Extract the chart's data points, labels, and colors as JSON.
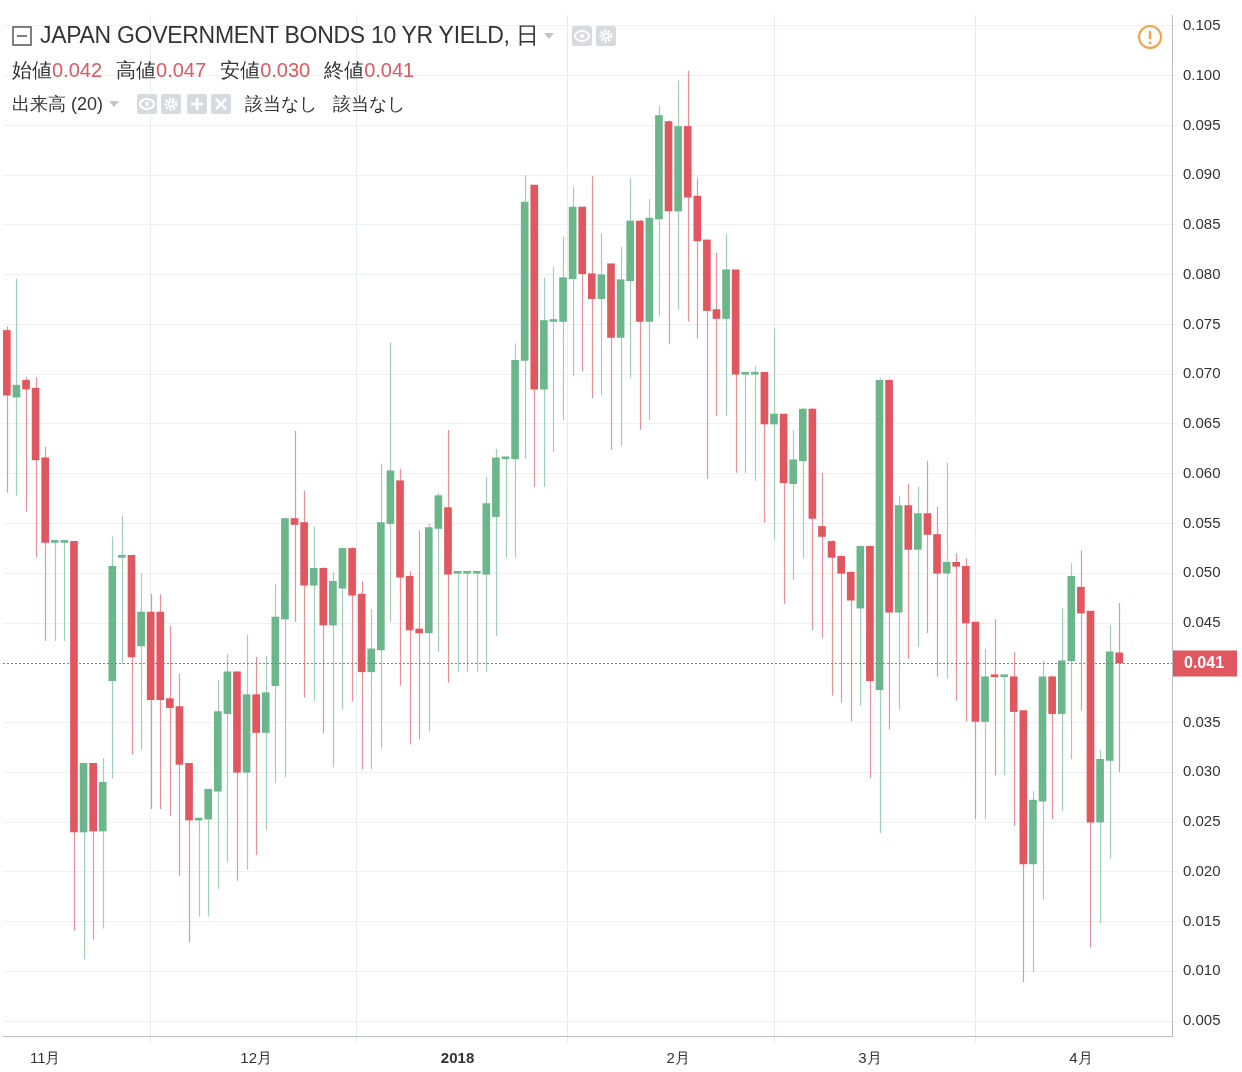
{
  "chart_data": {
    "type": "candlestick",
    "title": "JAPAN GOVERNMENT BONDS 10 YR YIELD, 日",
    "subtitle": "始値0.042 高値0.047 安値0.030 終値0.041",
    "annotations": [
      "出来高 (20)",
      "該当なし",
      "該当なし"
    ],
    "categories": [
      null,
      null,
      null,
      null,
      "11月",
      null,
      null,
      null,
      null,
      null,
      null,
      null,
      null,
      null,
      null,
      null,
      null,
      null,
      null,
      null,
      null,
      null,
      null,
      null,
      null,
      null,
      "12月",
      null,
      null,
      null,
      null,
      null,
      null,
      null,
      null,
      null,
      null,
      null,
      null,
      null,
      null,
      null,
      null,
      null,
      null,
      null,
      null,
      "2018",
      null,
      null,
      null,
      null,
      null,
      null,
      null,
      null,
      null,
      null,
      null,
      null,
      null,
      null,
      null,
      null,
      null,
      null,
      null,
      null,
      null,
      null,
      "2月",
      null,
      null,
      null,
      null,
      null,
      null,
      null,
      null,
      null,
      null,
      null,
      null,
      null,
      null,
      null,
      null,
      null,
      null,
      null,
      "3月",
      null,
      null,
      null,
      null,
      null,
      null,
      null,
      null,
      null,
      null,
      null,
      null,
      null,
      null,
      null,
      null,
      null,
      null,
      null,
      null,
      null,
      "4月",
      null,
      null,
      null,
      null
    ],
    "ohlc": [
      [
        0.0744,
        0.0748,
        0.0581,
        0.0679
      ],
      [
        0.0677,
        0.0796,
        0.0578,
        0.0689
      ],
      [
        0.0694,
        0.0697,
        0.0562,
        0.0685
      ],
      [
        0.0686,
        0.0697,
        0.0516,
        0.0614
      ],
      [
        0.0616,
        0.0627,
        0.0432,
        0.0531
      ],
      [
        0.0531,
        0.0532,
        0.0432,
        0.0531
      ],
      [
        0.0531,
        0.0532,
        0.0432,
        0.0531
      ],
      [
        0.0532,
        0.0532,
        0.0141,
        0.024
      ],
      [
        0.024,
        0.0309,
        0.0112,
        0.0309
      ],
      [
        0.0309,
        0.0309,
        0.0132,
        0.0241
      ],
      [
        0.0241,
        0.0314,
        0.0143,
        0.029
      ],
      [
        0.0392,
        0.0537,
        0.0294,
        0.0507
      ],
      [
        0.0516,
        0.0558,
        0.0409,
        0.0518
      ],
      [
        0.0518,
        0.0518,
        0.0318,
        0.0416
      ],
      [
        0.0427,
        0.05,
        0.0323,
        0.0461
      ],
      [
        0.0461,
        0.0479,
        0.0263,
        0.0373
      ],
      [
        0.0461,
        0.0479,
        0.0263,
        0.0373
      ],
      [
        0.0374,
        0.0447,
        0.0256,
        0.0365
      ],
      [
        0.0366,
        0.0399,
        0.0196,
        0.0308
      ],
      [
        0.0309,
        0.0309,
        0.0129,
        0.0252
      ],
      [
        0.0252,
        0.0254,
        0.0155,
        0.0253
      ],
      [
        0.0253,
        0.0283,
        0.0155,
        0.0283
      ],
      [
        0.0281,
        0.0393,
        0.0183,
        0.0361
      ],
      [
        0.0359,
        0.0419,
        0.021,
        0.0401
      ],
      [
        0.0401,
        0.0401,
        0.0191,
        0.03
      ],
      [
        0.03,
        0.0438,
        0.0202,
        0.0378
      ],
      [
        0.0378,
        0.0416,
        0.0217,
        0.034
      ],
      [
        0.034,
        0.0417,
        0.0242,
        0.038
      ],
      [
        0.0387,
        0.0489,
        0.0289,
        0.0456
      ],
      [
        0.0454,
        0.0555,
        0.0295,
        0.0555
      ],
      [
        0.0555,
        0.0643,
        0.0451,
        0.0549
      ],
      [
        0.0551,
        0.0583,
        0.0375,
        0.0488
      ],
      [
        0.0488,
        0.0547,
        0.0372,
        0.0505
      ],
      [
        0.0505,
        0.0506,
        0.0339,
        0.0448
      ],
      [
        0.0448,
        0.0501,
        0.0305,
        0.0492
      ],
      [
        0.0485,
        0.0526,
        0.0363,
        0.0525
      ],
      [
        0.0525,
        0.0526,
        0.0371,
        0.0478
      ],
      [
        0.0479,
        0.0492,
        0.0303,
        0.0401
      ],
      [
        0.0401,
        0.0464,
        0.0303,
        0.0424
      ],
      [
        0.0423,
        0.061,
        0.0324,
        0.0551
      ],
      [
        0.055,
        0.0732,
        0.0451,
        0.0603
      ],
      [
        0.0593,
        0.0605,
        0.0387,
        0.0496
      ],
      [
        0.0497,
        0.0502,
        0.0328,
        0.0443
      ],
      [
        0.0444,
        0.0543,
        0.0333,
        0.044
      ],
      [
        0.044,
        0.055,
        0.0341,
        0.0546
      ],
      [
        0.0545,
        0.0581,
        0.0421,
        0.0578
      ],
      [
        0.0566,
        0.0644,
        0.039,
        0.0499
      ],
      [
        0.05,
        0.0501,
        0.0401,
        0.05
      ],
      [
        0.05,
        0.0501,
        0.0401,
        0.05
      ],
      [
        0.05,
        0.0501,
        0.0401,
        0.05
      ],
      [
        0.0499,
        0.0597,
        0.0401,
        0.057
      ],
      [
        0.0557,
        0.0625,
        0.0437,
        0.0616
      ],
      [
        0.0615,
        0.0617,
        0.0516,
        0.0616
      ],
      [
        0.0615,
        0.0731,
        0.0516,
        0.0714
      ],
      [
        0.0714,
        0.09,
        0.0615,
        0.0873
      ],
      [
        0.089,
        0.089,
        0.0587,
        0.0685
      ],
      [
        0.0685,
        0.0797,
        0.0587,
        0.0754
      ],
      [
        0.0753,
        0.0808,
        0.0622,
        0.0754
      ],
      [
        0.0753,
        0.0838,
        0.0654,
        0.0797
      ],
      [
        0.0796,
        0.0888,
        0.0698,
        0.0868
      ],
      [
        0.0868,
        0.0868,
        0.0703,
        0.0801
      ],
      [
        0.0801,
        0.0899,
        0.0676,
        0.0776
      ],
      [
        0.0776,
        0.0841,
        0.0679,
        0.08
      ],
      [
        0.0811,
        0.0811,
        0.0624,
        0.0737
      ],
      [
        0.0737,
        0.0828,
        0.0628,
        0.0795
      ],
      [
        0.0794,
        0.0897,
        0.0696,
        0.0854
      ],
      [
        0.0854,
        0.0855,
        0.0644,
        0.0753
      ],
      [
        0.0753,
        0.0876,
        0.0654,
        0.0857
      ],
      [
        0.0856,
        0.097,
        0.0758,
        0.096
      ],
      [
        0.0954,
        0.0955,
        0.073,
        0.0864
      ],
      [
        0.0864,
        0.0995,
        0.0765,
        0.0949
      ],
      [
        0.0949,
        0.1005,
        0.0753,
        0.0878
      ],
      [
        0.0879,
        0.0897,
        0.0736,
        0.0834
      ],
      [
        0.0835,
        0.0835,
        0.0595,
        0.0764
      ],
      [
        0.0765,
        0.0822,
        0.0658,
        0.0756
      ],
      [
        0.0756,
        0.0841,
        0.0658,
        0.0805
      ],
      [
        0.0805,
        0.0805,
        0.0601,
        0.07
      ],
      [
        0.07,
        0.0701,
        0.0601,
        0.07
      ],
      [
        0.07,
        0.0708,
        0.0593,
        0.0701
      ],
      [
        0.0702,
        0.0702,
        0.0551,
        0.065
      ],
      [
        0.065,
        0.0746,
        0.0534,
        0.066
      ],
      [
        0.066,
        0.066,
        0.0469,
        0.0591
      ],
      [
        0.059,
        0.0644,
        0.0493,
        0.0614
      ],
      [
        0.0613,
        0.0666,
        0.0515,
        0.0665
      ],
      [
        0.0665,
        0.0666,
        0.0443,
        0.0555
      ],
      [
        0.0547,
        0.0601,
        0.0435,
        0.0537
      ],
      [
        0.0532,
        0.0533,
        0.0377,
        0.0516
      ],
      [
        0.0517,
        0.0518,
        0.037,
        0.05
      ],
      [
        0.0501,
        0.0502,
        0.0351,
        0.0473
      ],
      [
        0.0465,
        0.0528,
        0.0367,
        0.0527
      ],
      [
        0.0527,
        0.0528,
        0.0294,
        0.0392
      ],
      [
        0.0383,
        0.0696,
        0.0239,
        0.0694
      ],
      [
        0.0694,
        0.0695,
        0.0343,
        0.0461
      ],
      [
        0.0461,
        0.0578,
        0.0363,
        0.0568
      ],
      [
        0.0568,
        0.059,
        0.0414,
        0.0524
      ],
      [
        0.0524,
        0.0587,
        0.0426,
        0.056
      ],
      [
        0.056,
        0.0613,
        0.044,
        0.0539
      ],
      [
        0.0539,
        0.0567,
        0.0396,
        0.05
      ],
      [
        0.05,
        0.0611,
        0.0394,
        0.0511
      ],
      [
        0.0511,
        0.052,
        0.0372,
        0.0507
      ],
      [
        0.0507,
        0.0515,
        0.0351,
        0.045
      ],
      [
        0.0451,
        0.0451,
        0.0253,
        0.0351
      ],
      [
        0.0351,
        0.0424,
        0.0253,
        0.0396
      ],
      [
        0.0397,
        0.0454,
        0.0297,
        0.0396
      ],
      [
        0.0396,
        0.0397,
        0.0297,
        0.0396
      ],
      [
        0.0396,
        0.0421,
        0.0246,
        0.0361
      ],
      [
        0.0362,
        0.0362,
        0.0089,
        0.0208
      ],
      [
        0.0208,
        0.0281,
        0.0099,
        0.0272
      ],
      [
        0.0271,
        0.0412,
        0.0172,
        0.0396
      ],
      [
        0.0396,
        0.0397,
        0.0253,
        0.0359
      ],
      [
        0.0359,
        0.0465,
        0.0261,
        0.0412
      ],
      [
        0.0412,
        0.051,
        0.0313,
        0.0497
      ],
      [
        0.0486,
        0.0523,
        0.0362,
        0.046
      ],
      [
        0.0462,
        0.0462,
        0.0124,
        0.025
      ],
      [
        0.025,
        0.0322,
        0.0148,
        0.0313
      ],
      [
        0.0312,
        0.0448,
        0.0213,
        0.0421
      ],
      [
        0.042,
        0.047,
        0.03,
        0.041
      ]
    ],
    "colors": [
      "#e0575f",
      "#6bb68a",
      "#e0575f",
      "#e0575f",
      "#e0575f",
      "#6bb68a",
      "#6bb68a",
      "#e0575f",
      "#6bb68a",
      "#e0575f",
      "#6bb68a",
      "#6bb68a",
      "#6bb68a",
      "#e0575f",
      "#6bb68a",
      "#e0575f",
      "#e0575f",
      "#e0575f",
      "#e0575f",
      "#e0575f",
      "#6bb68a",
      "#6bb68a",
      "#6bb68a",
      "#6bb68a",
      "#e0575f",
      "#6bb68a",
      "#e0575f",
      "#6bb68a",
      "#6bb68a",
      "#6bb68a",
      "#e0575f",
      "#e0575f",
      "#6bb68a",
      "#e0575f",
      "#6bb68a",
      "#6bb68a",
      "#e0575f",
      "#e0575f",
      "#6bb68a",
      "#6bb68a",
      "#6bb68a",
      "#e0575f",
      "#e0575f",
      "#e0575f",
      "#6bb68a",
      "#6bb68a",
      "#e0575f",
      "#6bb68a",
      "#6bb68a",
      "#6bb68a",
      "#6bb68a",
      "#6bb68a",
      "#6bb68a",
      "#6bb68a",
      "#6bb68a",
      "#e0575f",
      "#6bb68a",
      "#6bb68a",
      "#6bb68a",
      "#6bb68a",
      "#e0575f",
      "#e0575f",
      "#6bb68a",
      "#e0575f",
      "#6bb68a",
      "#6bb68a",
      "#e0575f",
      "#6bb68a",
      "#6bb68a",
      "#e0575f",
      "#6bb68a",
      "#e0575f",
      "#e0575f",
      "#e0575f",
      "#e0575f",
      "#6bb68a",
      "#e0575f",
      "#6bb68a",
      "#6bb68a",
      "#e0575f",
      "#6bb68a",
      "#e0575f",
      "#6bb68a",
      "#6bb68a",
      "#e0575f",
      "#e0575f",
      "#e0575f",
      "#e0575f",
      "#e0575f",
      "#6bb68a",
      "#e0575f",
      "#6bb68a",
      "#e0575f",
      "#6bb68a",
      "#e0575f",
      "#6bb68a",
      "#e0575f",
      "#e0575f",
      "#6bb68a",
      "#e0575f",
      "#e0575f",
      "#e0575f",
      "#6bb68a",
      "#e0575f",
      "#6bb68a",
      "#e0575f",
      "#e0575f",
      "#6bb68a",
      "#6bb68a",
      "#e0575f",
      "#6bb68a",
      "#6bb68a",
      "#e0575f",
      "#e0575f",
      "#6bb68a",
      "#6bb68a",
      "#e0575f"
    ],
    "ylim": [
      0.0035,
      0.1061
    ],
    "yticks": [
      {
        "value": 0.005,
        "label": "0.005"
      },
      {
        "value": 0.01,
        "label": "0.010"
      },
      {
        "value": 0.015,
        "label": "0.015"
      },
      {
        "value": 0.02,
        "label": "0.020"
      },
      {
        "value": 0.025,
        "label": "0.025"
      },
      {
        "value": 0.03,
        "label": "0.030"
      },
      {
        "value": 0.035,
        "label": "0.035"
      },
      {
        "value": 0.045,
        "label": "0.045"
      },
      {
        "value": 0.05,
        "label": "0.050"
      },
      {
        "value": 0.055,
        "label": "0.055"
      },
      {
        "value": 0.06,
        "label": "0.060"
      },
      {
        "value": 0.065,
        "label": "0.065"
      },
      {
        "value": 0.07,
        "label": "0.070"
      },
      {
        "value": 0.075,
        "label": "0.075"
      },
      {
        "value": 0.08,
        "label": "0.080"
      },
      {
        "value": 0.085,
        "label": "0.085"
      },
      {
        "value": 0.09,
        "label": "0.090"
      },
      {
        "value": 0.095,
        "label": "0.095"
      },
      {
        "value": 0.1,
        "label": "0.100"
      },
      {
        "value": 0.105,
        "label": "0.105"
      }
    ],
    "grid": true,
    "ref_lines": [
      {
        "axis": "y",
        "value": 0.041,
        "label": "0.041",
        "color": "#e0575f",
        "line_style": "dotted"
      }
    ]
  }
}
